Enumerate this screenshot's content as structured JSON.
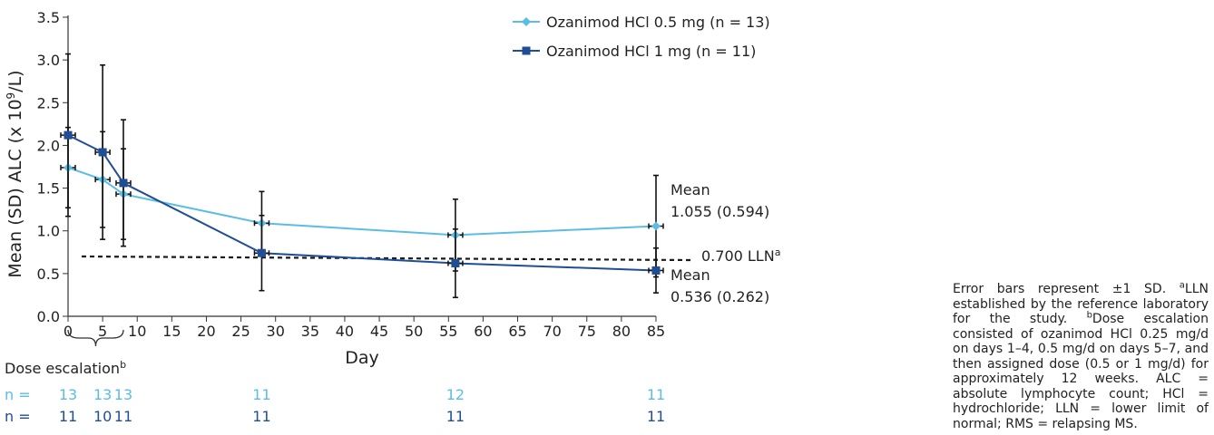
{
  "chart_data": {
    "type": "line",
    "xlabel": "Day",
    "ylabel_main": "Mean (SD) ALC (x 10",
    "ylabel_exp": "9",
    "ylabel_unit": "/L)",
    "xlim": [
      0,
      85
    ],
    "ylim": [
      0,
      3.5
    ],
    "xticks": [
      0,
      5,
      10,
      15,
      20,
      25,
      30,
      35,
      40,
      45,
      50,
      55,
      60,
      65,
      70,
      75,
      80,
      85
    ],
    "yticks": [
      0.0,
      0.5,
      1.0,
      1.5,
      2.0,
      2.5,
      3.0,
      3.5
    ],
    "ytick_labels": [
      "0.0",
      "0.5",
      "1.0",
      "1.5",
      "2.0",
      "2.5",
      "3.0",
      "3.5"
    ],
    "grid": false,
    "legend_position": "top-right",
    "series": [
      {
        "name": "Ozanimod HCl 0.5 mg (n = 13)",
        "color": "#5bbde6",
        "marker": "diamond",
        "x": [
          0,
          5,
          8,
          28,
          56,
          85
        ],
        "y": [
          1.74,
          1.6,
          1.43,
          1.09,
          0.95,
          1.055
        ],
        "sd": [
          0.47,
          0.56,
          0.53,
          0.37,
          0.42,
          0.594
        ],
        "n": [
          "13",
          "13",
          "13",
          "11",
          "12",
          "11"
        ]
      },
      {
        "name": "Ozanimod HCl 1 mg (n = 11)",
        "color": "#1f4e96",
        "marker": "square",
        "x": [
          0,
          5,
          8,
          28,
          56,
          85
        ],
        "y": [
          2.12,
          1.92,
          1.56,
          0.74,
          0.62,
          0.536
        ],
        "sd": [
          0.95,
          1.02,
          0.74,
          0.44,
          0.4,
          0.262
        ],
        "n": [
          "11",
          "10",
          "11",
          "11",
          "11",
          "11"
        ]
      }
    ],
    "reference_line": {
      "value": 0.7,
      "label": "0.700 LLN",
      "label_sup": "a"
    },
    "annotations": [
      {
        "line1": "Mean",
        "line2": "1.055 (0.594)"
      },
      {
        "line1": "Mean",
        "line2": "0.536 (0.262)"
      }
    ],
    "dose_escalation": {
      "label": "Dose escalation",
      "sup": "b",
      "from": 0,
      "to": 8
    },
    "n_prefix": "n = "
  },
  "caption": {
    "p1": "Error bars represent ±1 SD. ",
    "sup_a": "a",
    "p2": "LLN established by the reference laboratory for the study. ",
    "sup_b": "b",
    "p3": "Dose escalation consisted of ozanimod HCl 0.25 mg/d on days 1–4, 0.5 mg/d on days 5–7, and then assigned dose (0.5 or 1 mg/d) for approximately 12 weeks. ALC = absolute lymphocyte count; HCl = hydrochloride; LLN = lower limit of normal; RMS = relapsing MS."
  }
}
